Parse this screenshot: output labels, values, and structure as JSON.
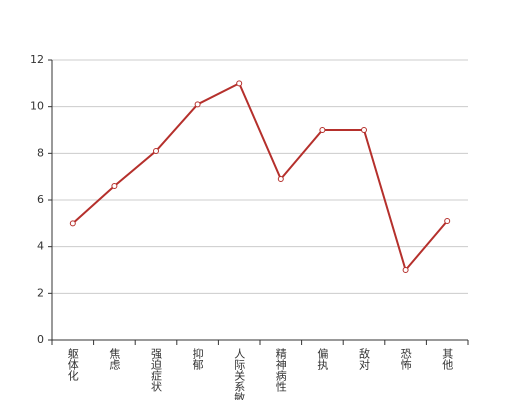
{
  "chart_data": {
    "type": "line",
    "categories": [
      "躯体化",
      "焦虑",
      "强迫症状",
      "抑郁",
      "人际关系敏感",
      "精神病性",
      "偏执",
      "敌对",
      "恐怖",
      "其他"
    ],
    "series": [
      {
        "values": [
          5,
          6.6,
          8.1,
          10.1,
          11,
          6.9,
          9,
          9,
          3,
          5.1
        ],
        "color": "#b5302c"
      }
    ],
    "ylim": [
      0,
      12
    ],
    "yticks": [
      0,
      2,
      4,
      6,
      8,
      10,
      12
    ],
    "grid": true
  }
}
